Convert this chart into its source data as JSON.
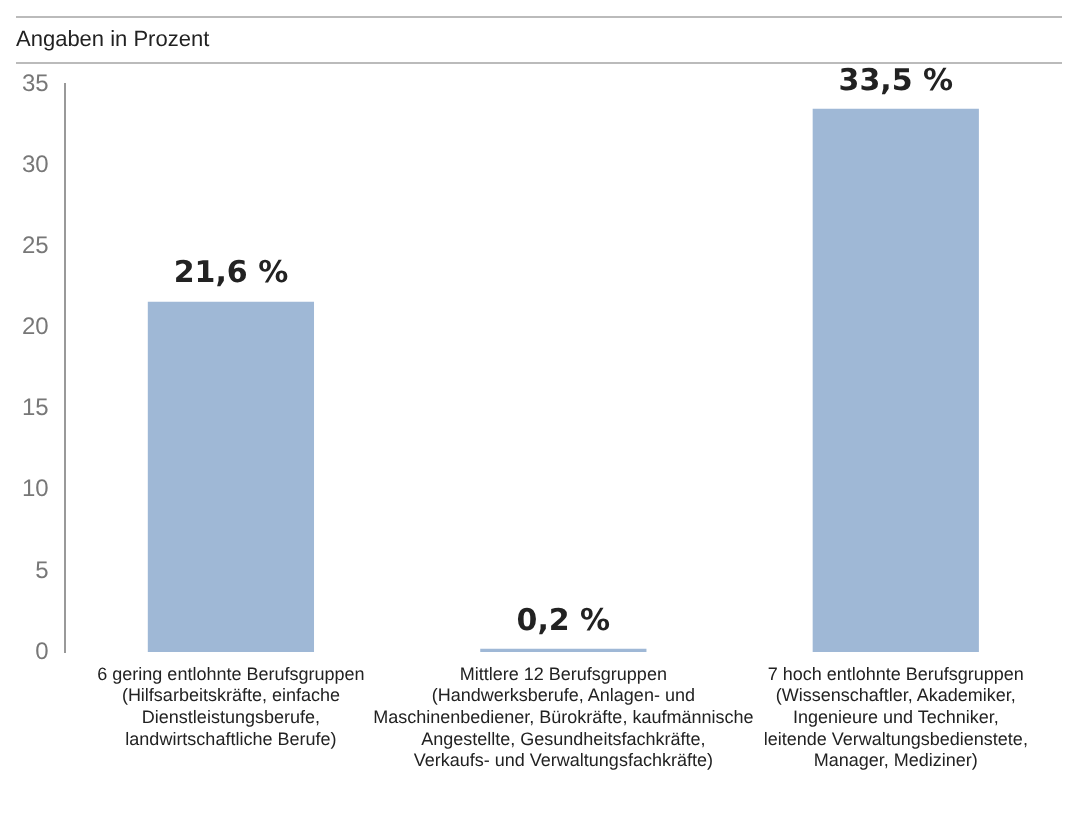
{
  "chart_data": {
    "type": "bar",
    "subtitle": "Angaben in Prozent",
    "categories": [
      "6 gering entlohnte Berufsgruppen\n(Hilfsarbeitskräfte, einfache\nDienstleistungsberufe,\nlandwirtschaftliche Berufe)",
      "Mittlere 12 Berufsgruppen\n(Handwerksberufe, Anlagen- und\nMaschinenbediener, Bürokräfte, kaufmännische\nAngestellte, Gesundheitsfachkräfte,\nVerkaufs- und Verwaltungsfachkräfte)",
      "7 hoch entlohnte Berufsgruppen\n(Wissenschaftler, Akademiker,\nIngenieure und Techniker,\nleitende Verwaltungsbedienstete,\nManager, Mediziner)"
    ],
    "values": [
      21.6,
      0.2,
      33.5
    ],
    "value_labels": [
      "21,6 %",
      "0,2 %",
      "33,5 %"
    ],
    "color": "#9fb8d6",
    "ylim": [
      0,
      35
    ],
    "yticks": [
      0,
      5,
      10,
      15,
      20,
      25,
      30,
      35
    ],
    "grid": false,
    "legend": false
  }
}
